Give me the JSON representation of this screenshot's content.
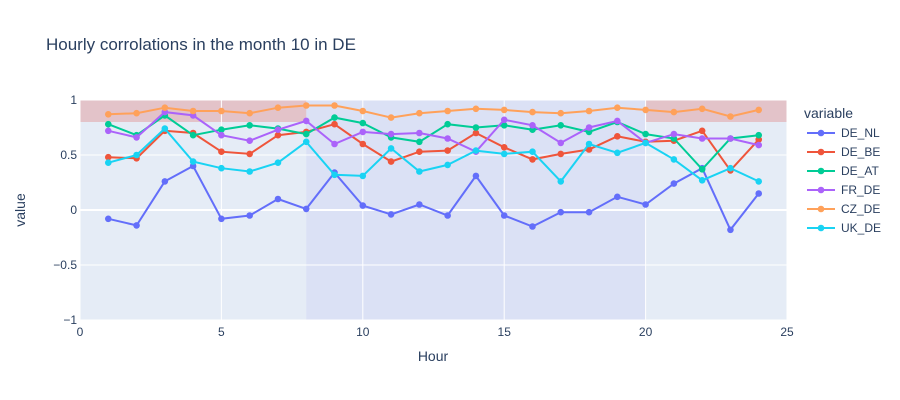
{
  "chart_data": {
    "type": "line",
    "title": "Hourly corrolations in the month 10 in DE",
    "xlabel": "Hour",
    "ylabel": "value",
    "xlim": [
      0,
      25
    ],
    "ylim": [
      -1,
      1
    ],
    "x_ticks": [
      "0",
      "5",
      "10",
      "15",
      "20",
      "25"
    ],
    "y_ticks": [
      "1",
      "0.5",
      "0",
      "−0.5",
      "−1"
    ],
    "grid": true,
    "legend": {
      "title": "variable",
      "placement": "right"
    },
    "highlight_bands": [
      {
        "axis": "y",
        "from": 0.8,
        "to": 1.0,
        "color": "#e3c3c9"
      },
      {
        "axis": "x",
        "from": 8,
        "to": 20,
        "color": "#dbe1f5"
      }
    ],
    "x": [
      1,
      2,
      3,
      4,
      5,
      6,
      7,
      8,
      9,
      10,
      11,
      12,
      13,
      14,
      15,
      16,
      17,
      18,
      19,
      20,
      21,
      22,
      23,
      24
    ],
    "series": [
      {
        "name": "DE_NL",
        "color": "#636efa",
        "values": [
          -0.08,
          -0.14,
          0.26,
          0.4,
          -0.08,
          -0.05,
          0.1,
          0.01,
          0.34,
          0.04,
          -0.04,
          0.05,
          -0.05,
          0.31,
          -0.05,
          -0.15,
          -0.02,
          -0.02,
          0.12,
          0.05,
          0.24,
          0.38,
          -0.18,
          0.15
        ]
      },
      {
        "name": "DE_BE",
        "color": "#ef553b",
        "values": [
          0.48,
          0.47,
          0.72,
          0.7,
          0.53,
          0.51,
          0.68,
          0.71,
          0.78,
          0.6,
          0.44,
          0.53,
          0.54,
          0.7,
          0.57,
          0.46,
          0.51,
          0.55,
          0.67,
          0.62,
          0.63,
          0.72,
          0.36,
          0.64
        ]
      },
      {
        "name": "DE_AT",
        "color": "#00cc96",
        "values": [
          0.78,
          0.68,
          0.86,
          0.68,
          0.73,
          0.77,
          0.74,
          0.69,
          0.84,
          0.79,
          0.66,
          0.62,
          0.78,
          0.75,
          0.77,
          0.73,
          0.77,
          0.71,
          0.8,
          0.69,
          0.65,
          0.37,
          0.65,
          0.68
        ]
      },
      {
        "name": "FR_DE",
        "color": "#ab63fa",
        "values": [
          0.72,
          0.66,
          0.89,
          0.86,
          0.68,
          0.63,
          0.73,
          0.81,
          0.6,
          0.71,
          0.69,
          0.7,
          0.65,
          0.53,
          0.82,
          0.77,
          0.61,
          0.75,
          0.81,
          0.61,
          0.69,
          0.65,
          0.65,
          0.59
        ]
      },
      {
        "name": "CZ_DE",
        "color": "#ffa15a",
        "values": [
          0.87,
          0.88,
          0.93,
          0.9,
          0.9,
          0.88,
          0.93,
          0.95,
          0.95,
          0.9,
          0.84,
          0.88,
          0.9,
          0.92,
          0.91,
          0.89,
          0.88,
          0.9,
          0.93,
          0.91,
          0.89,
          0.92,
          0.85,
          0.91
        ]
      },
      {
        "name": "UK_DE",
        "color": "#19d3f3",
        "values": [
          0.43,
          0.5,
          0.74,
          0.44,
          0.38,
          0.35,
          0.43,
          0.62,
          0.32,
          0.31,
          0.56,
          0.35,
          0.41,
          0.54,
          0.51,
          0.53,
          0.26,
          0.6,
          0.52,
          0.61,
          0.46,
          0.27,
          0.38,
          0.26
        ]
      }
    ]
  }
}
